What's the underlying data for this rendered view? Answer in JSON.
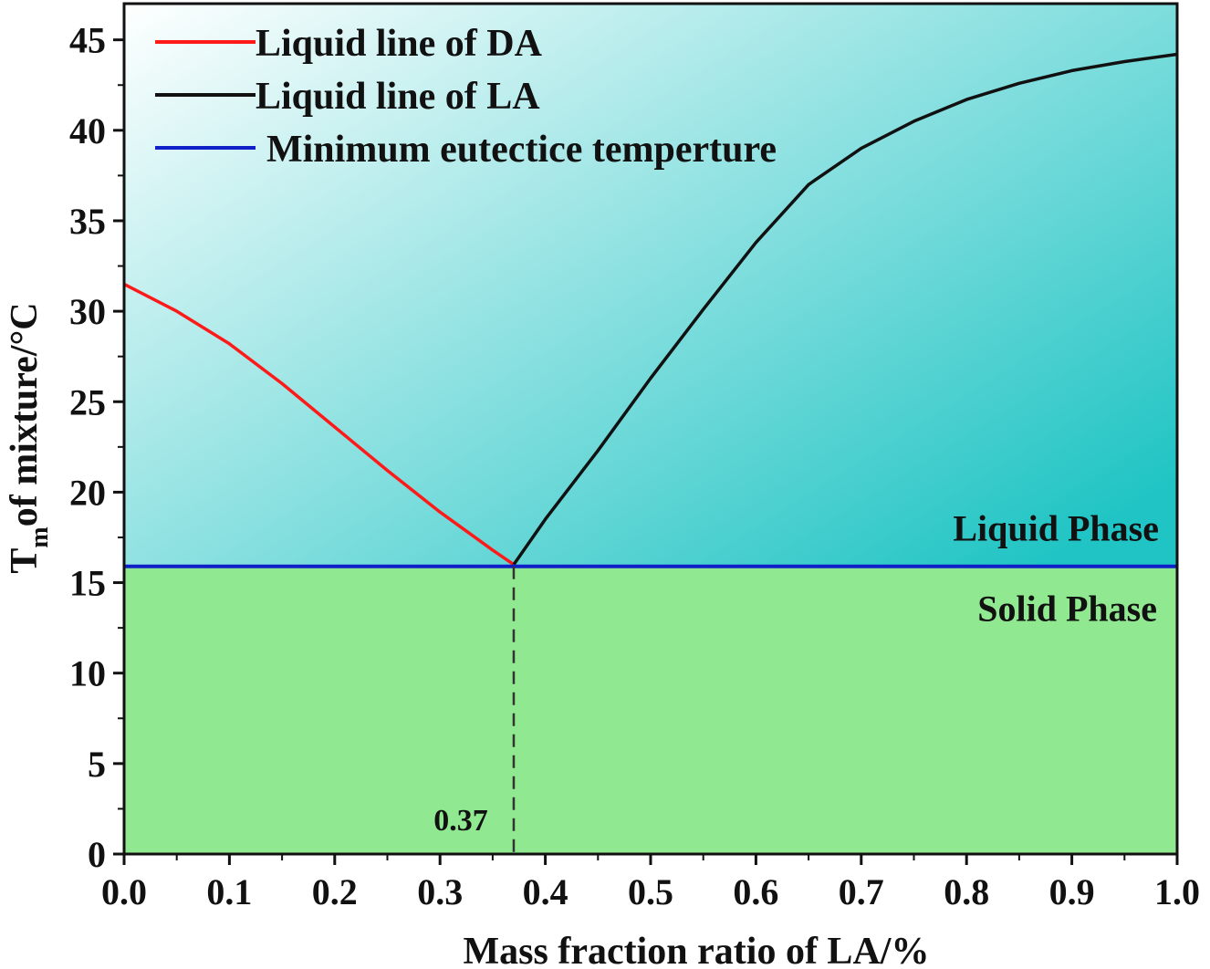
{
  "chart_data": {
    "type": "line",
    "xlabel": "Mass fraction ratio of  LA/%",
    "ylabel_main": "T",
    "ylabel_sub": "m",
    "ylabel_rest": "of mixture/°C",
    "xlim": [
      0.0,
      1.0
    ],
    "ylim": [
      0,
      47
    ],
    "x_ticks": [
      "0.0",
      "0.1",
      "0.2",
      "0.3",
      "0.4",
      "0.5",
      "0.6",
      "0.7",
      "0.8",
      "0.9",
      "1.0"
    ],
    "y_ticks": [
      "0",
      "5",
      "10",
      "15",
      "20",
      "25",
      "30",
      "35",
      "40",
      "45"
    ],
    "legend_position": "top-left",
    "series": [
      {
        "name": "Liquid line of  DA",
        "color": "#ff1a1a",
        "x": [
          0.0,
          0.05,
          0.1,
          0.15,
          0.2,
          0.25,
          0.3,
          0.35,
          0.37
        ],
        "y": [
          31.5,
          30.0,
          28.2,
          26.0,
          23.6,
          21.2,
          18.9,
          16.8,
          16.0
        ]
      },
      {
        "name": "Liquid line of  LA",
        "color": "#111111",
        "x": [
          0.37,
          0.4,
          0.45,
          0.5,
          0.55,
          0.6,
          0.65,
          0.7,
          0.75,
          0.8,
          0.85,
          0.9,
          0.95,
          1.0
        ],
        "y": [
          16.0,
          18.5,
          22.3,
          26.3,
          30.1,
          33.8,
          37.0,
          39.0,
          40.5,
          41.7,
          42.6,
          43.3,
          43.8,
          44.2
        ]
      },
      {
        "name": "Minimum eutectice temperture",
        "color": "#1020c8",
        "x": [
          0.0,
          1.0
        ],
        "y": [
          15.9,
          15.9
        ]
      }
    ],
    "annotations": {
      "eutectic_x_label": "0.37",
      "eutectic_x": 0.37,
      "liquid_region": "Liquid Phase",
      "solid_region": "Solid Phase"
    },
    "colors": {
      "solid_fill": "#90e890",
      "liquid_gradient_start": "#ffffff",
      "liquid_gradient_end": "#20c4c4"
    }
  }
}
